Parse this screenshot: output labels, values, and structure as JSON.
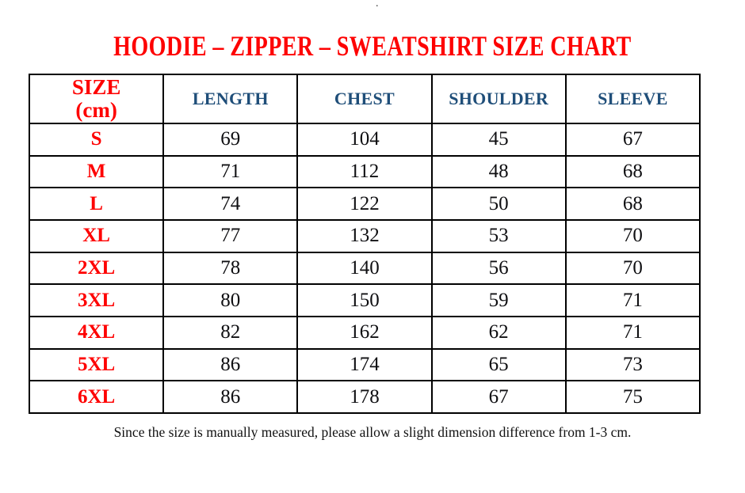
{
  "colors": {
    "title_red": "#fe0000",
    "header_blue": "#1f4e79",
    "body_black": "#0f0f12",
    "border_black": "#000000"
  },
  "top_dot": ".",
  "title": "HOODIE – ZIPPER – SWEATSHIRT SIZE CHART",
  "table": {
    "size_header": {
      "line1": "SIZE",
      "line2": "(cm)"
    },
    "measure_headers": [
      "LENGTH",
      "CHEST",
      "SHOULDER",
      "SLEEVE"
    ]
  },
  "footnote": "Since the size is manually measured, please allow a slight dimension difference from 1-3 cm.",
  "chart_data": {
    "type": "table",
    "title": "HOODIE – ZIPPER – SWEATSHIRT SIZE CHART",
    "columns": [
      "SIZE (cm)",
      "LENGTH",
      "CHEST",
      "SHOULDER",
      "SLEEVE"
    ],
    "rows": [
      [
        "S",
        69,
        104,
        45,
        67
      ],
      [
        "M",
        71,
        112,
        48,
        68
      ],
      [
        "L",
        74,
        122,
        50,
        68
      ],
      [
        "XL",
        77,
        132,
        53,
        70
      ],
      [
        "2XL",
        78,
        140,
        56,
        70
      ],
      [
        "3XL",
        80,
        150,
        59,
        71
      ],
      [
        "4XL",
        82,
        162,
        62,
        71
      ],
      [
        "5XL",
        86,
        174,
        65,
        73
      ],
      [
        "6XL",
        86,
        178,
        67,
        75
      ]
    ],
    "note": "Since the size is manually measured, please allow a slight dimension difference from 1-3 cm."
  }
}
